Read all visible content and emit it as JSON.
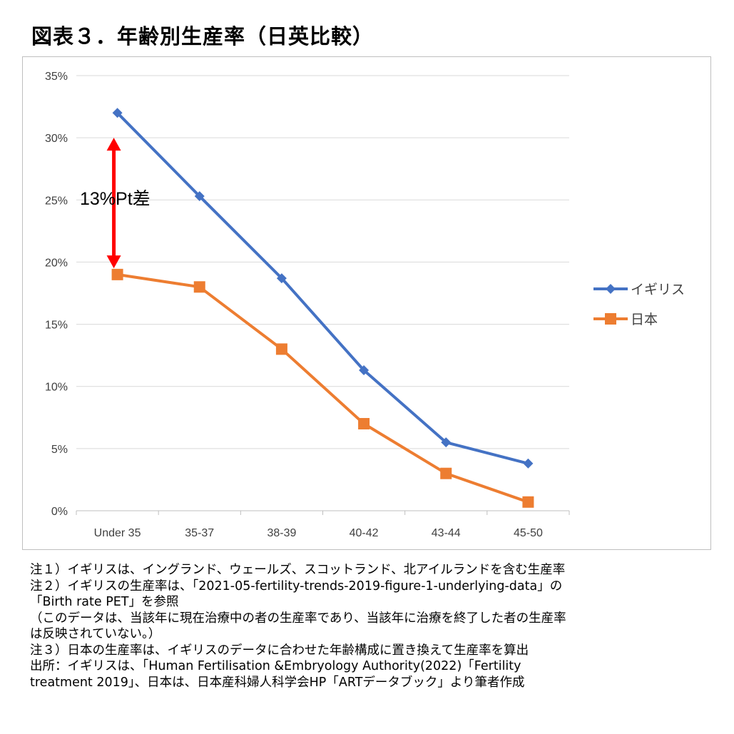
{
  "page_title": "図表３．年齢別生産率（日英比較）",
  "chart_data": {
    "type": "line",
    "categories": [
      "Under 35",
      "35-37",
      "38-39",
      "40-42",
      "43-44",
      "45-50"
    ],
    "y_ticks": [
      "0%",
      "5%",
      "10%",
      "15%",
      "20%",
      "25%",
      "30%",
      "35%"
    ],
    "ylim": [
      0,
      35
    ],
    "y_unit": "%",
    "grid": true,
    "legend_position": "right",
    "series": [
      {
        "name": "イギリス",
        "values": [
          32.0,
          25.3,
          18.7,
          11.3,
          5.5,
          3.8
        ],
        "color": "#4472c4",
        "marker": "diamond"
      },
      {
        "name": "日本",
        "values": [
          19.0,
          18.0,
          13.0,
          7.0,
          3.0,
          0.7
        ],
        "color": "#ed7d31",
        "marker": "square"
      }
    ],
    "annotation": {
      "text": "13%Pt差",
      "color": "#ff0000",
      "from_value": 30.0,
      "to_value": 19.5,
      "category_index": 0
    }
  },
  "notes": [
    "注１）イギリスは、イングランド、ウェールズ、スコットランド、北アイルランドを含む生産率",
    "注２）イギリスの生産率は、「2021-05-fertility-trends-2019-figure-1-underlying-data」の",
    "「Birth rate PET」を参照",
    "（このデータは、当該年に現在治療中の者の生産率であり、当該年に治療を終了した者の生産率",
    "は反映されていない。）",
    "注３）日本の生産率は、イギリスのデータに合わせた年齢構成に置き換えて生産率を算出",
    "出所：イギリスは、「Human Fertilisation &Embryology Authority(2022)「Fertility",
    "treatment 2019」、日本は、日本産科婦人科学会HP「ARTデータブック」より筆者作成"
  ]
}
